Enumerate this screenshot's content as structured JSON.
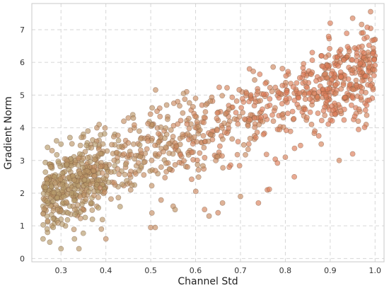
{
  "chart_data": {
    "type": "scatter",
    "title": "",
    "xlabel": "Channel Std",
    "ylabel": "Gradient Norm",
    "xlim": [
      0.235,
      1.02
    ],
    "ylim": [
      -0.1,
      7.8
    ],
    "xticks": [
      0.3,
      0.4,
      0.5,
      0.6,
      0.7,
      0.8,
      0.9,
      1.0
    ],
    "xtick_labels": [
      "0.3",
      "0.4",
      "0.5",
      "0.6",
      "0.7",
      "0.8",
      "0.9",
      "1.0"
    ],
    "yticks": [
      0,
      1,
      2,
      3,
      4,
      5,
      6,
      7
    ],
    "ytick_labels": [
      "0",
      "1",
      "2",
      "3",
      "4",
      "5",
      "6",
      "7"
    ],
    "grid": true,
    "point_color_low": "#b59a6a",
    "point_color_high": "#dd7b57",
    "point_edge_color": "#7a5a40",
    "point_opacity": 0.65,
    "trend": {
      "intercept": 0.6,
      "slope": 5.2
    },
    "x_range": [
      0.26,
      1.0
    ],
    "point_count": 1200,
    "points": [
      [
        0.26,
        0.6
      ],
      [
        0.27,
        0.8
      ],
      [
        0.275,
        0.5
      ],
      [
        0.3,
        0.3
      ],
      [
        0.34,
        0.3
      ],
      [
        0.33,
        0.6
      ],
      [
        0.31,
        1.0
      ],
      [
        0.3,
        1.2
      ],
      [
        0.28,
        1.0
      ],
      [
        0.26,
        1.6
      ],
      [
        0.265,
        2.1
      ],
      [
        0.27,
        3.4
      ],
      [
        0.28,
        3.3
      ],
      [
        0.29,
        3.6
      ],
      [
        0.3,
        3.5
      ],
      [
        0.32,
        3.7
      ],
      [
        0.35,
        3.8
      ],
      [
        0.36,
        3.9
      ],
      [
        0.38,
        4.0
      ],
      [
        0.385,
        4.1
      ],
      [
        0.35,
        1.5
      ],
      [
        0.37,
        1.2
      ],
      [
        0.39,
        0.9
      ],
      [
        0.4,
        0.6
      ],
      [
        0.42,
        3.8
      ],
      [
        0.44,
        4.2
      ],
      [
        0.45,
        4.3
      ],
      [
        0.46,
        4.4
      ],
      [
        0.5,
        0.95
      ],
      [
        0.51,
        0.95
      ],
      [
        0.52,
        4.6
      ],
      [
        0.55,
        1.6
      ],
      [
        0.56,
        4.8
      ],
      [
        0.58,
        5.1
      ],
      [
        0.6,
        4.9
      ],
      [
        0.62,
        1.5
      ],
      [
        0.63,
        1.3
      ],
      [
        0.65,
        1.4
      ],
      [
        0.66,
        1.7
      ],
      [
        0.7,
        1.9
      ],
      [
        0.72,
        5.8
      ],
      [
        0.74,
        1.7
      ],
      [
        0.76,
        2.1
      ],
      [
        0.8,
        3.1
      ],
      [
        0.82,
        2.5
      ],
      [
        0.86,
        6.3
      ],
      [
        0.88,
        6.2
      ],
      [
        0.9,
        7.2
      ],
      [
        0.92,
        3.0
      ],
      [
        0.95,
        7.35
      ],
      [
        0.95,
        3.2
      ],
      [
        0.99,
        7.55
      ],
      [
        0.98,
        4.1
      ],
      [
        1.0,
        6.7
      ],
      [
        0.97,
        6.9
      ],
      [
        0.88,
        3.5
      ]
    ]
  }
}
